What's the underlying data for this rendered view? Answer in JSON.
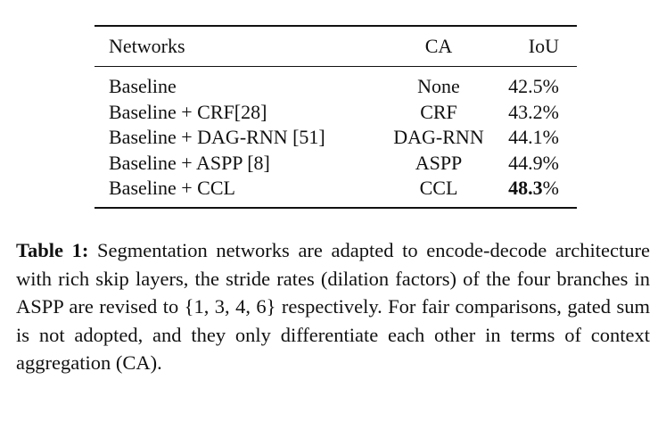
{
  "table": {
    "headers": [
      "Networks",
      "CA",
      "IoU"
    ],
    "rows": [
      {
        "network": "Baseline",
        "ca": "None",
        "iou": "42.5%"
      },
      {
        "network": "Baseline + CRF[28]",
        "ca": "CRF",
        "iou": "43.2%"
      },
      {
        "network": "Baseline + DAG-RNN [51]",
        "ca": "DAG-RNN",
        "iou": "44.1%"
      },
      {
        "network": "Baseline + ASPP [8]",
        "ca": "ASPP",
        "iou": "44.9%"
      },
      {
        "network": "Baseline + CCL",
        "ca": "CCL",
        "iou_bold": "48.3",
        "iou_suffix": "%"
      }
    ]
  },
  "caption": {
    "label": "Table 1:",
    "text": " Segmentation networks are adapted to encode-decode architecture with rich skip layers, the stride rates (dilation factors) of the four branches in ASPP are revised to {1, 3, 4, 6} respectively. For fair comparisons, gated sum is not adopted, and they only differentiate each other in terms of context aggregation (CA)."
  }
}
